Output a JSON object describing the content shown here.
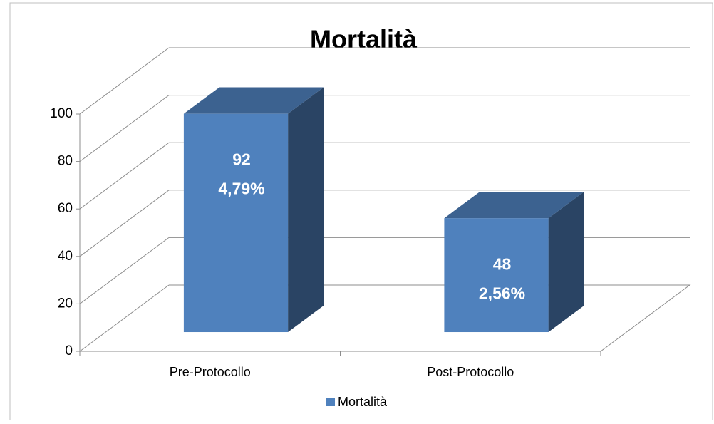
{
  "chart_data": {
    "type": "bar3d",
    "title": "Mortalità",
    "categories": [
      "Pre-Protocollo",
      "Post-Protocollo"
    ],
    "series": [
      {
        "name": "Mortalità",
        "color": "#4f81bd",
        "values": [
          92,
          48
        ]
      }
    ],
    "percentage_labels": [
      "4,79%",
      "2,56%"
    ],
    "ylim": [
      0,
      100
    ],
    "yticks": [
      0,
      20,
      40,
      60,
      80,
      100
    ],
    "grid": true,
    "legend": "bottom"
  }
}
